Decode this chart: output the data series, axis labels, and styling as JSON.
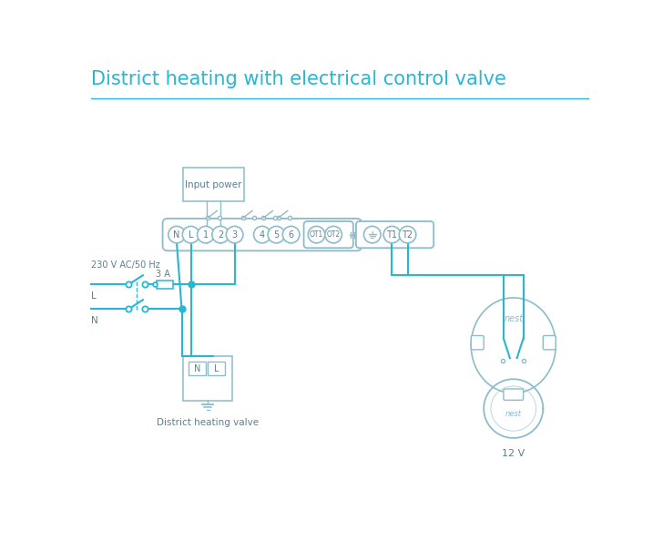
{
  "title": "District heating with electrical control valve",
  "title_color": "#29b6d2",
  "title_fontsize": 15,
  "bg_color": "#ffffff",
  "wire_color": "#29b6d2",
  "component_color": "#8cbccc",
  "text_color": "#5a8090",
  "terminal_labels": [
    "N",
    "L",
    "1",
    "2",
    "3",
    "4",
    "5",
    "6"
  ],
  "ot_labels": [
    "OT1",
    "OT2"
  ],
  "t_labels": [
    "T1",
    "T2"
  ],
  "label_input_power": "Input power",
  "label_district_valve": "District heating valve",
  "label_12v": "12 V",
  "label_L": "L",
  "label_N": "N",
  "label_3A": "3 A",
  "label_230": "230 V AC/50 Hz",
  "label_nest": "nest"
}
